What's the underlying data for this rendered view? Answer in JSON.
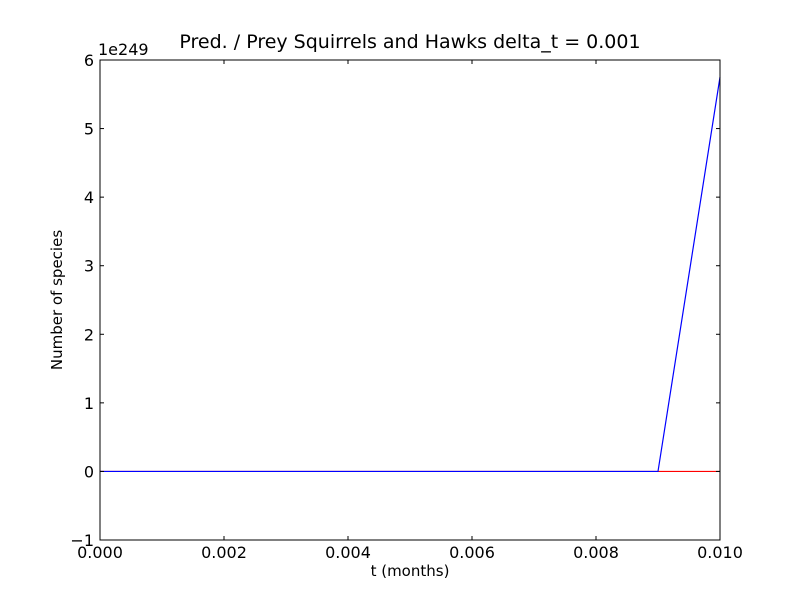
{
  "chart_data": {
    "type": "line",
    "title": "Pred. / Prey Squirrels and Hawks delta_t = 0.001",
    "xlabel": "t (months)",
    "ylabel": "Number of species",
    "y_offset_label": "1e249",
    "xlim": [
      0.0,
      0.01
    ],
    "ylim": [
      -1,
      6
    ],
    "x_ticks": [
      "0.000",
      "0.002",
      "0.004",
      "0.006",
      "0.008",
      "0.010"
    ],
    "y_ticks": [
      "−1",
      "0",
      "1",
      "2",
      "3",
      "4",
      "5",
      "6"
    ],
    "grid": false,
    "x": [
      0.0,
      0.001,
      0.002,
      0.003,
      0.004,
      0.005,
      0.006,
      0.007,
      0.008,
      0.009,
      0.01
    ],
    "series": [
      {
        "color": "#ff0000",
        "values": [
          0,
          0,
          0,
          0,
          0,
          0,
          0,
          0,
          0,
          0,
          0
        ]
      },
      {
        "color": "#0000ff",
        "values": [
          0,
          0,
          0,
          0,
          0,
          0,
          0,
          0,
          0,
          0,
          5.75
        ]
      }
    ]
  }
}
